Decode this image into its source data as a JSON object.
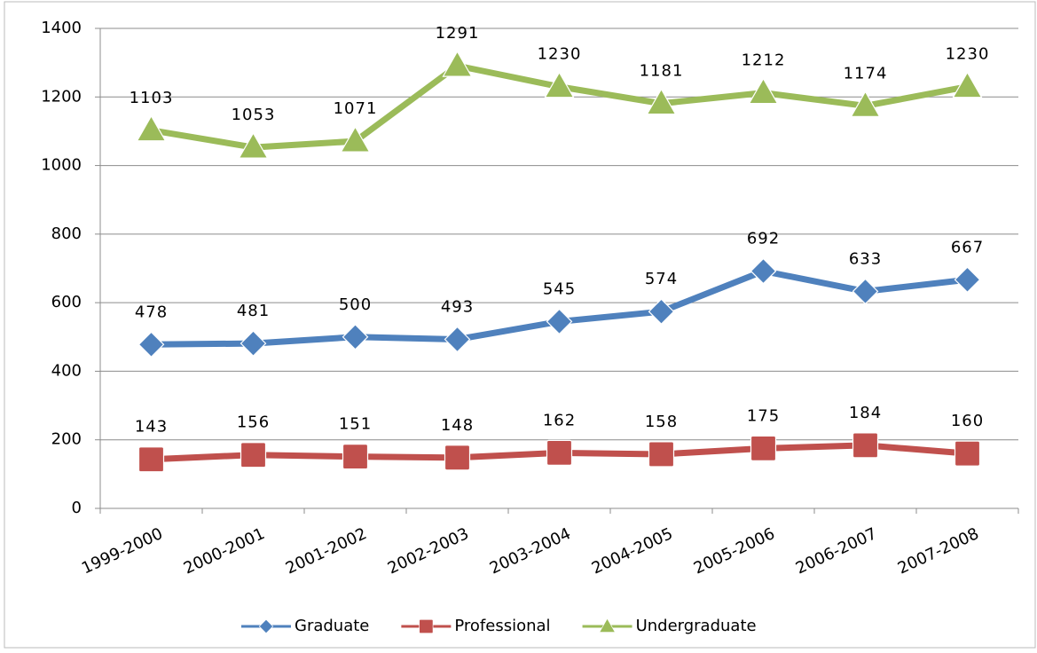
{
  "chart_data": {
    "type": "line",
    "categories": [
      "1999-2000",
      "2000-2001",
      "2001-2002",
      "2002-2003",
      "2003-2004",
      "2004-2005",
      "2005-2006",
      "2006-2007",
      "2007-2008"
    ],
    "series": [
      {
        "name": "Graduate",
        "color": "#4f81bd",
        "marker": "diamond",
        "values": [
          478,
          481,
          500,
          493,
          545,
          574,
          692,
          633,
          667
        ]
      },
      {
        "name": "Professional",
        "color": "#c0504d",
        "marker": "square",
        "values": [
          143,
          156,
          151,
          148,
          162,
          158,
          175,
          184,
          160
        ]
      },
      {
        "name": "Undergraduate",
        "color": "#9bbb59",
        "marker": "triangle",
        "values": [
          1103,
          1053,
          1071,
          1291,
          1230,
          1181,
          1212,
          1174,
          1230
        ]
      }
    ],
    "ylim": [
      0,
      1400
    ],
    "yticks": [
      0,
      200,
      400,
      600,
      800,
      1000,
      1200,
      1400
    ],
    "grid": true,
    "legend": "bottom"
  }
}
